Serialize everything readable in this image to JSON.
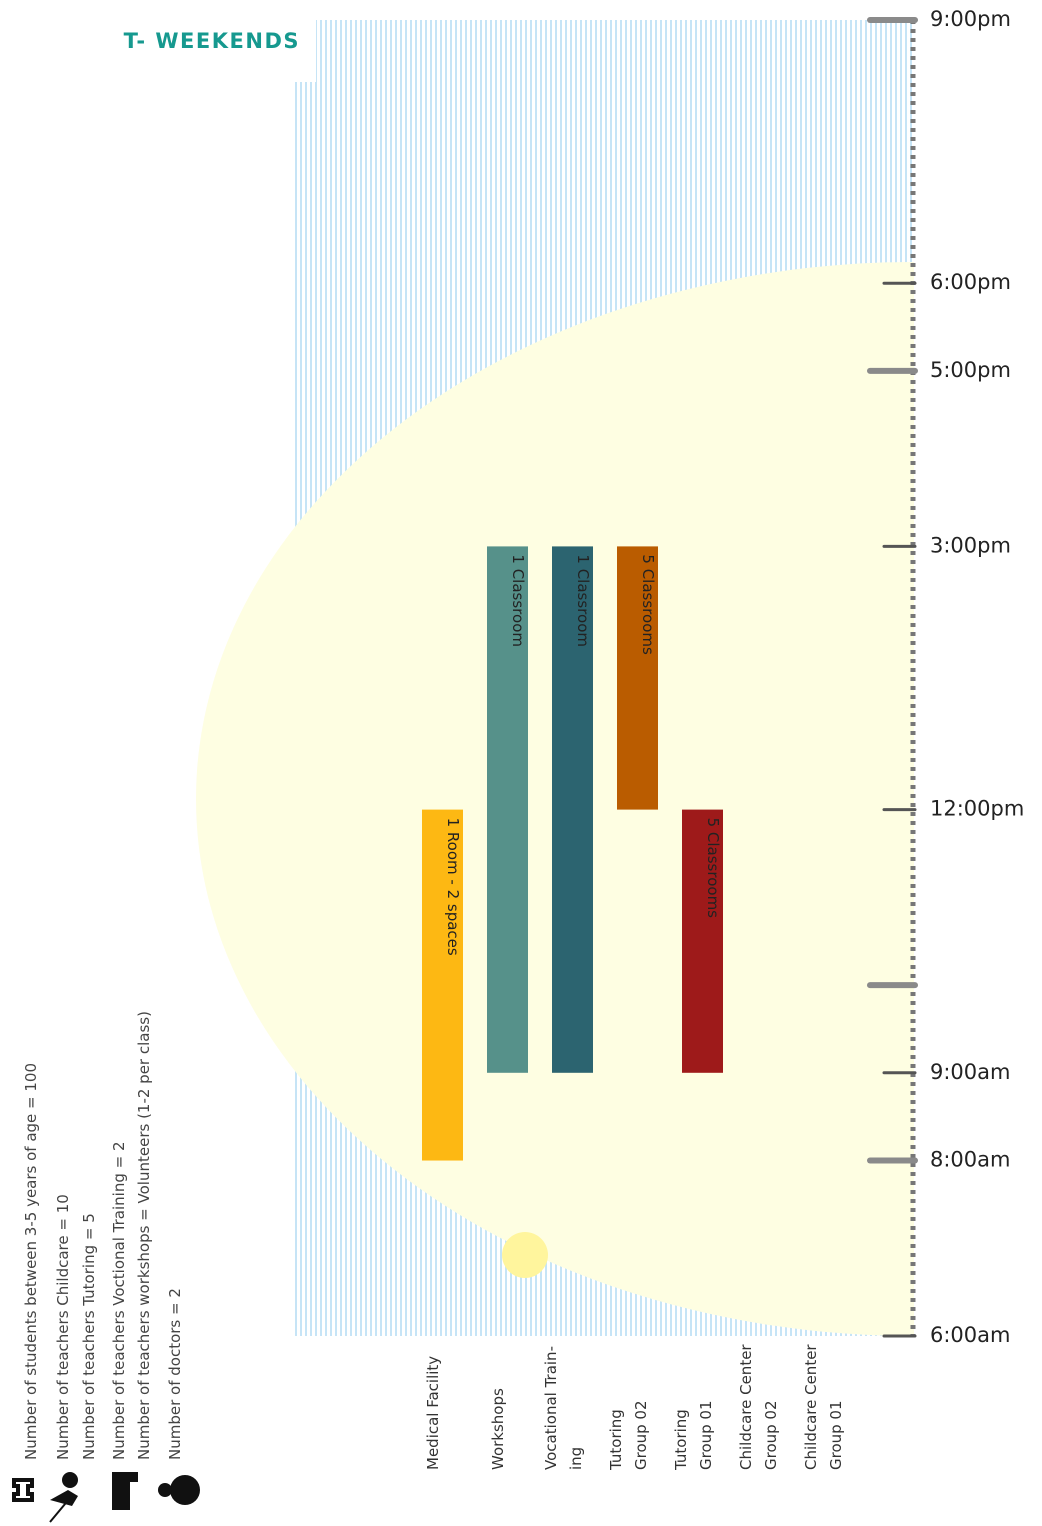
{
  "chart_data": {
    "type": "timeline",
    "title": "T- WEEKENDS",
    "categories": [
      "Medical Facility",
      "Workshops",
      "Vocational Train-\ning",
      "Tutoring\nGroup 02",
      "Tutoring\nGroup 01",
      "Childcare Center\nGroup 02",
      "Childcare Center\nGroup 01"
    ],
    "start": [
      8,
      9,
      9,
      12,
      9,
      null,
      null
    ],
    "end": [
      12,
      15,
      15,
      15,
      12,
      null,
      null
    ],
    "colors": [
      "#fdb813",
      "#56918a",
      "#2c6470",
      "#ba5c00",
      "#9e1a1a",
      null,
      null
    ],
    "bar_labels": [
      "1 Room - 2 spaces",
      "1 Classroom",
      "1 Classroom",
      "5 Classrooms",
      "5 Classrooms",
      null,
      null
    ],
    "ylim": [
      6,
      21
    ],
    "yticks": [
      {
        "value": 6,
        "label": "6:00am"
      },
      {
        "value": 8,
        "label": "8:00am"
      },
      {
        "value": 9,
        "label": "9:00am"
      },
      {
        "value": 10,
        "label": null
      },
      {
        "value": 12,
        "label": "12:00pm"
      },
      {
        "value": 15,
        "label": "3:00pm"
      },
      {
        "value": 17,
        "label": "5:00pm"
      },
      {
        "value": 18,
        "label": "6:00pm"
      },
      {
        "value": 21,
        "label": "9:00pm"
      }
    ],
    "thick_ticks": [
      8,
      10,
      17,
      21
    ],
    "notes": [
      "Number of students between 3-5 years of age = 100",
      "Number of teachers Childcare = 10",
      "Number of teachers Tutoring = 5",
      "Number of teachers Voctional Training = 2",
      "Number of teachers workshops =  Volunteers (1-2 per class)",
      "Number of doctors = 2"
    ]
  }
}
